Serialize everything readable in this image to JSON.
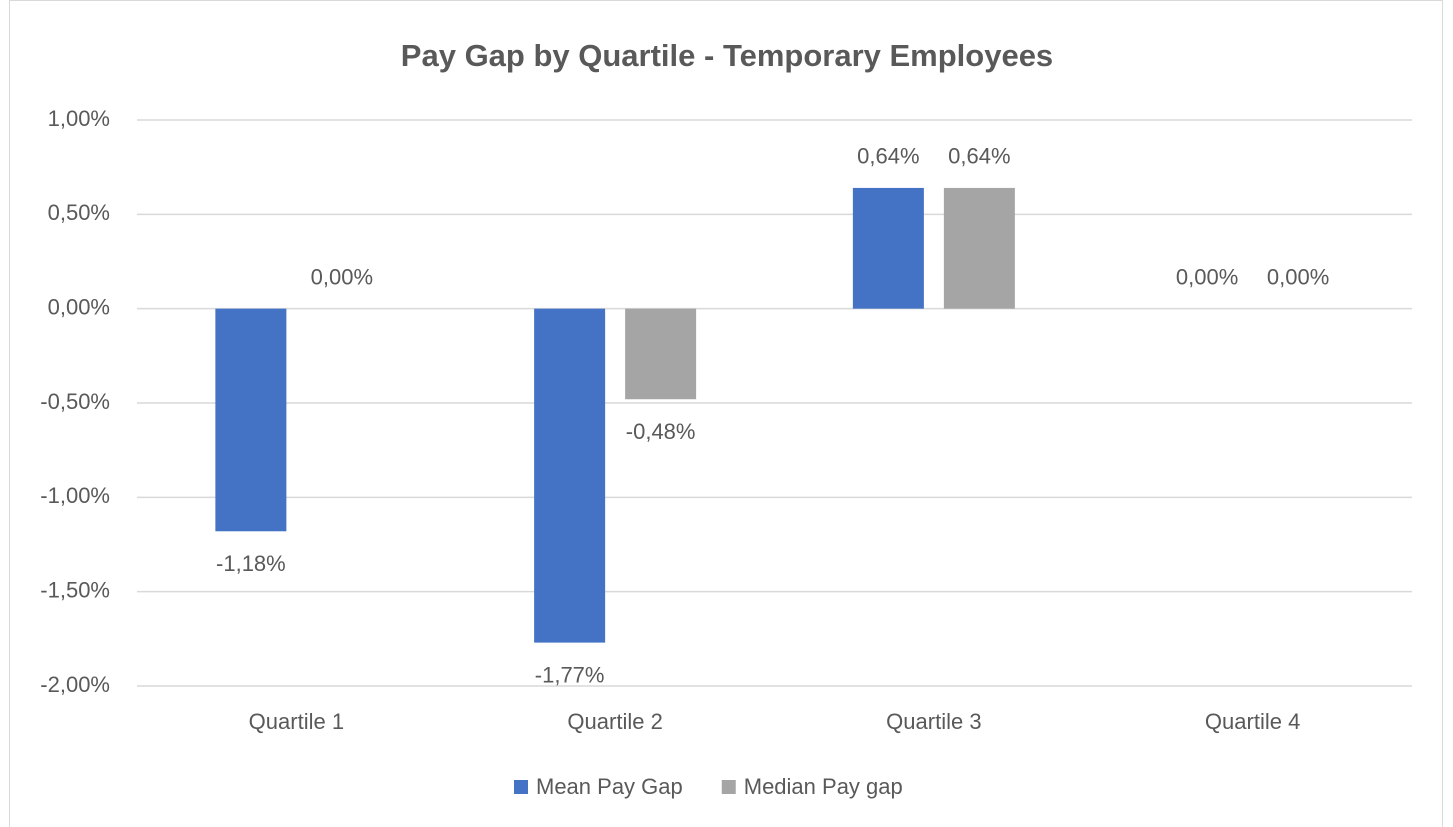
{
  "chart_data": {
    "type": "bar",
    "title": "Pay Gap by Quartile - Temporary Employees",
    "categories": [
      "Quartile 1",
      "Quartile 2",
      "Quartile 3",
      "Quartile 4"
    ],
    "series": [
      {
        "name": "Mean Pay Gap",
        "color": "#4472c4",
        "values": [
          -1.18,
          -1.77,
          0.64,
          0
        ],
        "value_labels": [
          "-1,18%",
          "-1,77%",
          "0,64%",
          "0,00%"
        ]
      },
      {
        "name": "Median Pay gap",
        "color": "#a5a5a5",
        "values": [
          0,
          -0.48,
          0.64,
          0
        ],
        "value_labels": [
          "0,00%",
          "-0,48%",
          "0,64%",
          "0,00%"
        ]
      }
    ],
    "ylim": [
      -2,
      1
    ],
    "yticks": [
      {
        "value": 1,
        "label": "1,00%"
      },
      {
        "value": 0.5,
        "label": "0,50%"
      },
      {
        "value": 0,
        "label": "0,00%"
      },
      {
        "value": -0.5,
        "label": "-0,50%"
      },
      {
        "value": -1,
        "label": "-1,00%"
      },
      {
        "value": -1.5,
        "label": "-1,50%"
      },
      {
        "value": -2,
        "label": "-2,00%"
      }
    ],
    "grid": true,
    "legend": "bottom"
  }
}
